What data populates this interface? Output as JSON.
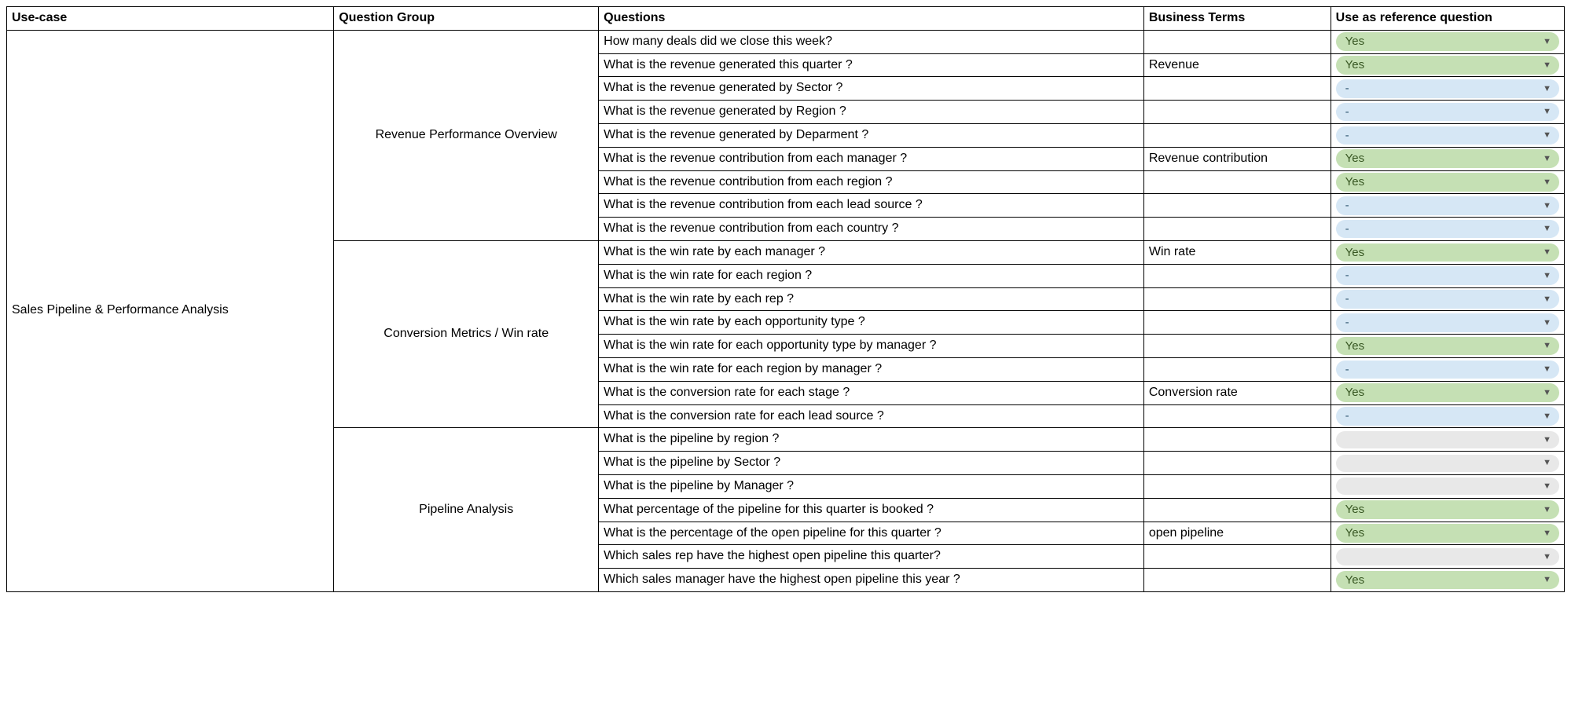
{
  "headers": {
    "usecase": "Use-case",
    "group": "Question Group",
    "questions": "Questions",
    "bterms": "Business Terms",
    "ref": "Use as reference question"
  },
  "usecase": "Sales Pipeline & Performance Analysis",
  "pill_colors": {
    "yes": {
      "bg": "#c5e0b4",
      "text": "#385723"
    },
    "dash": {
      "bg": "#d6e7f5",
      "text": "#2e5670"
    },
    "empty": {
      "bg": "#e8e8e8",
      "text": "#666666"
    }
  },
  "groups": [
    {
      "name": "Revenue Performance Overview",
      "rows": [
        {
          "q": "How many deals did we close this week?",
          "bt": "",
          "ref": "Yes",
          "style": "yes"
        },
        {
          "q": "What is the revenue generated this quarter ?",
          "bt": "Revenue",
          "ref": "Yes",
          "style": "yes"
        },
        {
          "q": "What is the revenue generated by Sector ?",
          "bt": "",
          "ref": "-",
          "style": "dash"
        },
        {
          "q": "What is the revenue generated by Region ?",
          "bt": "",
          "ref": "-",
          "style": "dash"
        },
        {
          "q": "What is the revenue generated by Deparment ?",
          "bt": "",
          "ref": "-",
          "style": "dash"
        },
        {
          "q": "What is the revenue contribution from each manager ?",
          "bt": "Revenue contribution",
          "ref": "Yes",
          "style": "yes"
        },
        {
          "q": "What is the revenue contribution from each region ?",
          "bt": "",
          "ref": "Yes",
          "style": "yes"
        },
        {
          "q": "What is the revenue contribution from each lead source ?",
          "bt": "",
          "ref": "-",
          "style": "dash"
        },
        {
          "q": "What is the revenue contribution from each country ?",
          "bt": "",
          "ref": "-",
          "style": "dash"
        }
      ]
    },
    {
      "name": "Conversion Metrics / Win rate",
      "rows": [
        {
          "q": "What is the win rate by each manager  ?",
          "bt": "Win rate",
          "ref": "Yes",
          "style": "yes"
        },
        {
          "q": "What is the win rate for each region ?",
          "bt": "",
          "ref": "-",
          "style": "dash"
        },
        {
          "q": "What is the win rate by each rep ?",
          "bt": "",
          "ref": "-",
          "style": "dash"
        },
        {
          "q": "What is the win rate by each opportunity type ?",
          "bt": "",
          "ref": "-",
          "style": "dash"
        },
        {
          "q": "What is the win rate for each opportunity type by manager ?",
          "bt": "",
          "ref": "Yes",
          "style": "yes"
        },
        {
          "q": "What is the win rate for each region by manager ?",
          "bt": "",
          "ref": "-",
          "style": "dash"
        },
        {
          "q": "What is the conversion rate for each stage ?",
          "bt": "Conversion rate",
          "ref": "Yes",
          "style": "yes"
        },
        {
          "q": "What is the conversion rate for each lead source ?",
          "bt": "",
          "ref": "-",
          "style": "dash"
        }
      ]
    },
    {
      "name": "Pipeline Analysis",
      "rows": [
        {
          "q": "What is the pipeline by region ?",
          "bt": "",
          "ref": "",
          "style": "empty"
        },
        {
          "q": "What is the pipeline by Sector ?",
          "bt": "",
          "ref": "",
          "style": "empty"
        },
        {
          "q": "What is the pipeline by Manager ?",
          "bt": "",
          "ref": "",
          "style": "empty"
        },
        {
          "q": "What percentage of the pipeline for this quarter is booked ?",
          "bt": "",
          "ref": "Yes",
          "style": "yes"
        },
        {
          "q": "What is the percentage of the open pipeline for this quarter ?",
          "bt": "open pipeline",
          "ref": "Yes",
          "style": "yes"
        },
        {
          "q": "Which sales rep have the highest open pipeline this quarter?",
          "bt": "",
          "ref": "",
          "style": "empty"
        },
        {
          "q": "Which sales manager have the highest open pipeline this year ?",
          "bt": "",
          "ref": "Yes",
          "style": "yes"
        }
      ]
    }
  ]
}
